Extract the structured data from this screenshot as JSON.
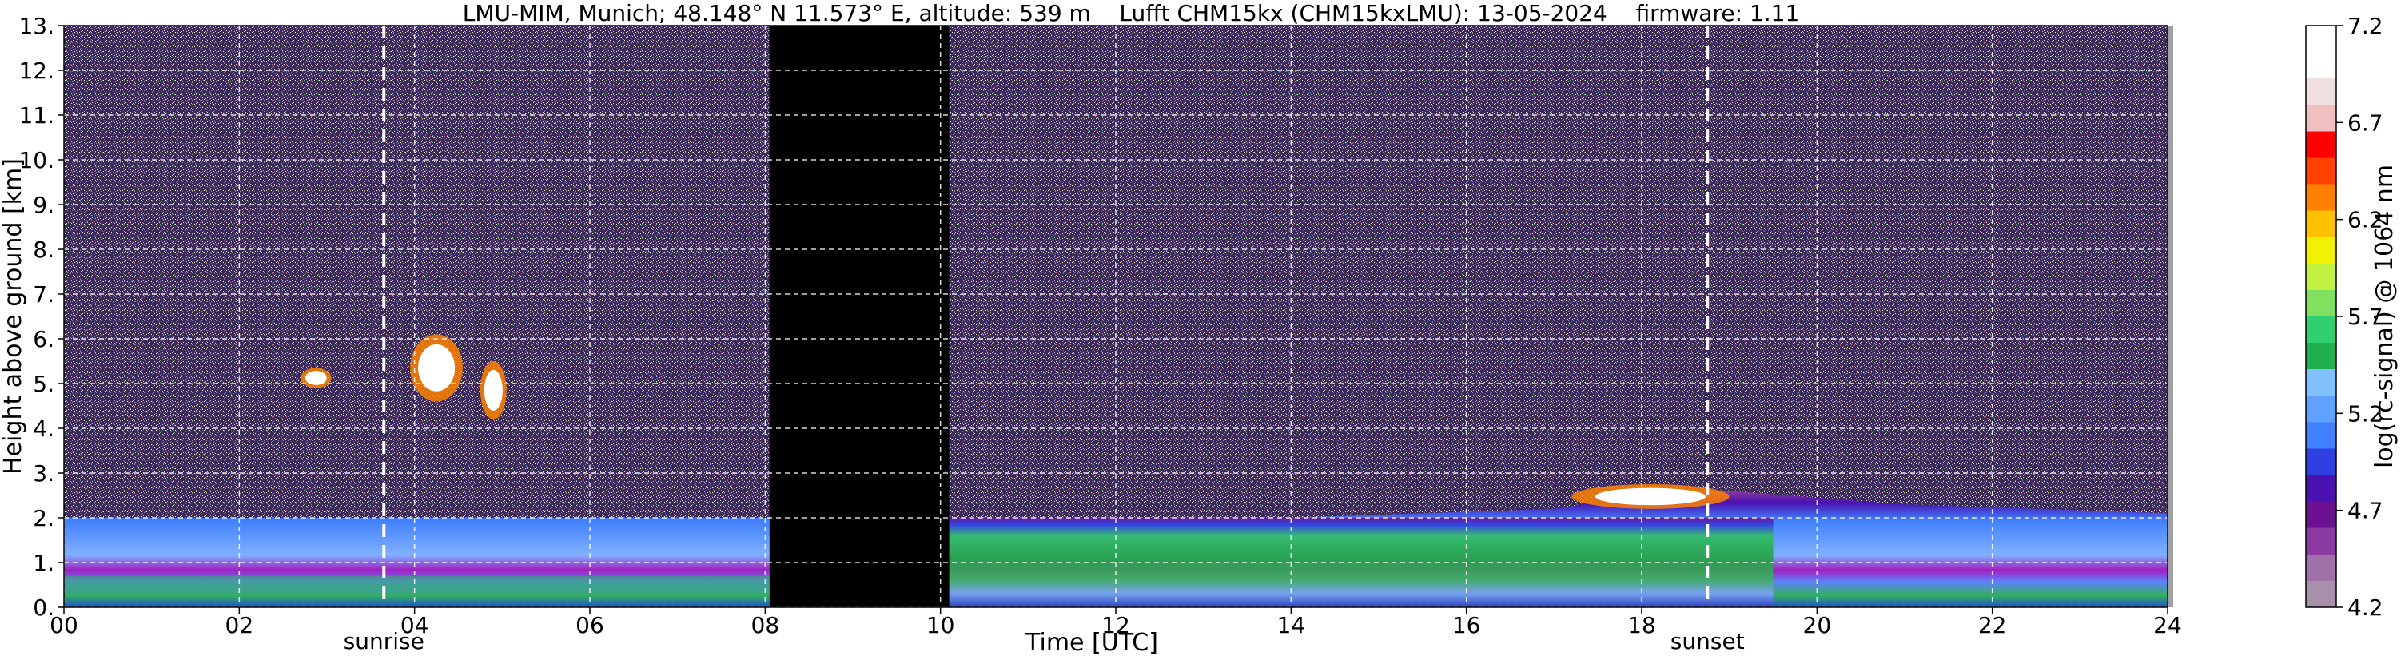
{
  "title": "LMU-MIM, Munich; 48.148° N 11.573° E, altitude: 539 m    Lufft CHM15kx (CHM15kxLMU): 13-05-2024    firmware: 1.11",
  "chart_data": {
    "type": "heatmap",
    "title": "LMU-MIM, Munich; 48.148° N 11.573° E, altitude: 539 m    Lufft CHM15kx (CHM15kxLMU): 13-05-2024    firmware: 1.11",
    "xlabel": "Time [UTC]",
    "ylabel": "Height above ground [km]",
    "colorbar_label": "log(rc-signal) @ 1064 nm",
    "xlim": [
      0,
      24
    ],
    "ylim": [
      0,
      13
    ],
    "xticks": [
      0,
      2,
      4,
      6,
      8,
      10,
      12,
      14,
      16,
      18,
      20,
      22,
      24
    ],
    "xtick_labels": [
      "00",
      "02",
      "04",
      "06",
      "08",
      "10",
      "12",
      "14",
      "16",
      "18",
      "20",
      "22",
      "24"
    ],
    "yticks": [
      0,
      1,
      2,
      3,
      4,
      5,
      6,
      7,
      8,
      9,
      10,
      11,
      12,
      13
    ],
    "ytick_labels": [
      "0.",
      "1.",
      "2.",
      "3.",
      "4.",
      "5.",
      "6.",
      "7.",
      "8.",
      "9.",
      "10.",
      "11.",
      "12.",
      "13."
    ],
    "colorbar_range": [
      4.2,
      7.2
    ],
    "colorbar_ticks": [
      4.2,
      4.7,
      5.2,
      5.7,
      6.2,
      6.7,
      7.2
    ],
    "colorbar_tick_labels": [
      "4.2",
      "4.7",
      "5.2",
      "5.7",
      "6.2",
      "6.7",
      "7.2"
    ],
    "colormap": [
      "#a890a8",
      "#a070a8",
      "#8a3aa0",
      "#6a1090",
      "#4a10b0",
      "#3040e0",
      "#4080ff",
      "#60a0ff",
      "#80c0ff",
      "#20b050",
      "#30d070",
      "#80e060",
      "#c0f040",
      "#f0f000",
      "#ffc000",
      "#ff8000",
      "#ff4000",
      "#ff0000",
      "#f0c0c0",
      "#f0e0e0",
      "#ffffff",
      "#ffffff"
    ],
    "grid": true,
    "events": [
      {
        "name": "sunrise",
        "time": 3.65
      },
      {
        "name": "sunset",
        "time": 18.75
      }
    ],
    "no_data_intervals": [
      [
        8.05,
        10.1
      ]
    ],
    "boundary_layer": [
      {
        "t": 0,
        "h": 2.0
      },
      {
        "t": 4,
        "h": 2.0
      },
      {
        "t": 8,
        "h": 2.0
      },
      {
        "t": 10.1,
        "h": 2.0
      },
      {
        "t": 14,
        "h": 2.0
      },
      {
        "t": 17,
        "h": 2.2
      },
      {
        "t": 18,
        "h": 2.5
      },
      {
        "t": 19,
        "h": 2.6
      },
      {
        "t": 21,
        "h": 2.3
      },
      {
        "t": 24,
        "h": 2.1
      }
    ],
    "clouds": [
      {
        "t_start": 2.7,
        "t_end": 3.05,
        "h_base": 4.9,
        "h_top": 5.35
      },
      {
        "t_start": 3.95,
        "t_end": 4.55,
        "h_base": 4.6,
        "h_top": 6.1
      },
      {
        "t_start": 4.75,
        "t_end": 5.05,
        "h_base": 4.2,
        "h_top": 5.5
      },
      {
        "t_start": 17.2,
        "t_end": 19.0,
        "h_base": 2.2,
        "h_top": 2.75
      }
    ]
  }
}
